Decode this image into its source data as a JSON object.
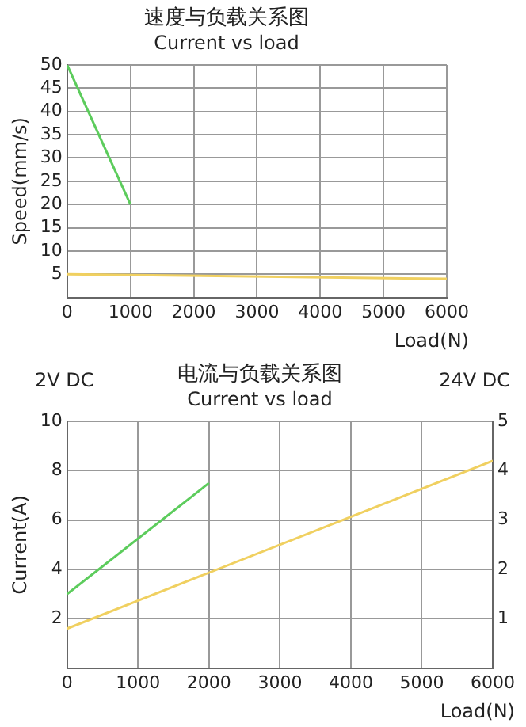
{
  "chart_data": [
    {
      "type": "line",
      "title": "速度与负载关系图",
      "subtitle": "Current vs load",
      "xlabel": "Load(N)",
      "ylabel": "Speed(mm/s)",
      "xlim": [
        0,
        6000
      ],
      "xticks": [
        0,
        1000,
        2000,
        3000,
        4000,
        5000,
        6000
      ],
      "ylim": [
        0,
        50
      ],
      "yticks": [
        5,
        10,
        15,
        20,
        25,
        30,
        35,
        40,
        45,
        50
      ],
      "grid": true,
      "legend": false,
      "marker": "none",
      "series": [
        {
          "color": "#5ccc5c",
          "x": [
            0,
            1000
          ],
          "values": [
            50,
            20
          ]
        },
        {
          "color": "#f0d060",
          "x": [
            0,
            6000
          ],
          "values": [
            5,
            4
          ]
        }
      ]
    },
    {
      "type": "line",
      "title": "电流与负载关系图",
      "subtitle": "Current vs load",
      "xlabel": "Load(N)",
      "ylabel": "Current(A)",
      "xlim": [
        0,
        6000
      ],
      "xticks": [
        0,
        1000,
        2000,
        3000,
        4000,
        5000,
        6000
      ],
      "ylim": [
        0,
        10
      ],
      "yticks": [
        2,
        4,
        6,
        8,
        10
      ],
      "y2lim": [
        0,
        5
      ],
      "y2ticks": [
        1,
        2,
        3,
        4,
        5
      ],
      "grid": true,
      "legend": false,
      "marker": "none",
      "annotations": [
        "2V DC",
        "24V DC"
      ],
      "series": [
        {
          "color": "#5ccc5c",
          "x": [
            0,
            2000
          ],
          "values": [
            3,
            7.5
          ]
        },
        {
          "color": "#f0d060",
          "axis": "y2",
          "x": [
            0,
            6000
          ],
          "values": [
            0.8,
            4.2
          ]
        }
      ]
    }
  ]
}
